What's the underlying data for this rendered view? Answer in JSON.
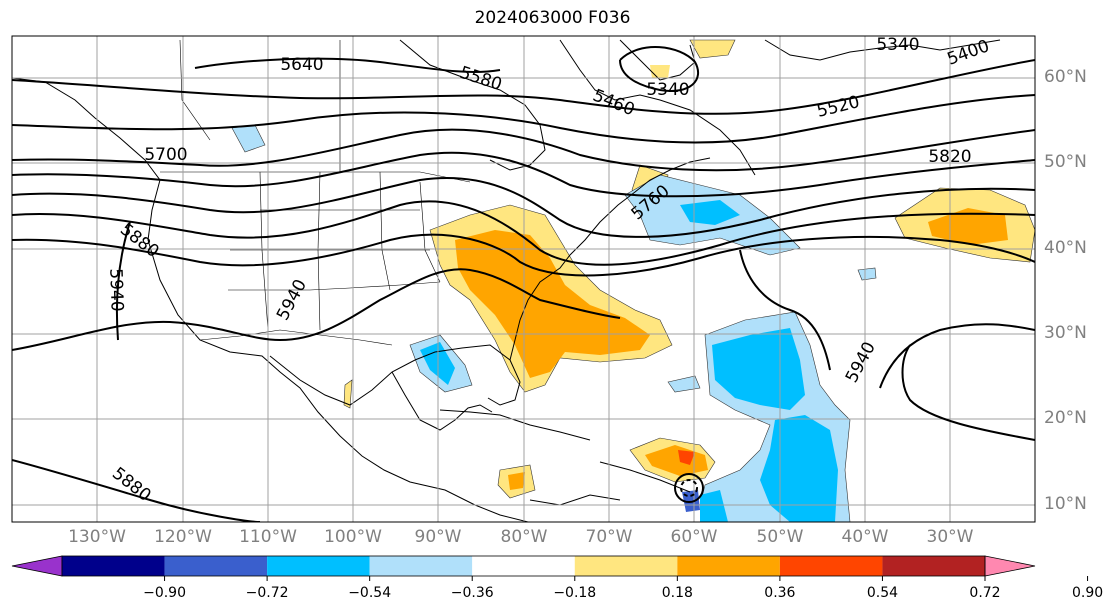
{
  "title": "2024063000 F036",
  "latitude_labels": [
    {
      "text": "60°N",
      "lat": 60
    },
    {
      "text": "50°N",
      "lat": 50
    },
    {
      "text": "40°N",
      "lat": 40
    },
    {
      "text": "30°N",
      "lat": 30
    },
    {
      "text": "20°N",
      "lat": 20
    },
    {
      "text": "10°N",
      "lat": 10
    }
  ],
  "longitude_labels": [
    {
      "text": "130°W",
      "lon": -130
    },
    {
      "text": "120°W",
      "lon": -120
    },
    {
      "text": "110°W",
      "lon": -110
    },
    {
      "text": "100°W",
      "lon": -100
    },
    {
      "text": "90°W",
      "lon": -90
    },
    {
      "text": "80°W",
      "lon": -80
    },
    {
      "text": "70°W",
      "lon": -70
    },
    {
      "text": "60°W",
      "lon": -60
    },
    {
      "text": "50°W",
      "lon": -50
    },
    {
      "text": "40°W",
      "lon": -40
    },
    {
      "text": "30°W",
      "lon": -30
    }
  ],
  "contour_labels": [
    "5640",
    "5580",
    "5460",
    "5340",
    "5400",
    "5340",
    "5520",
    "5700",
    "5820",
    "5880",
    "5940",
    "5940",
    "5940",
    "5880",
    "5760"
  ],
  "colorbar": {
    "ticks": [
      "−0.90",
      "−0.72",
      "−0.54",
      "−0.36",
      "−0.18",
      "0.18",
      "0.36",
      "0.54",
      "0.72",
      "0.90"
    ],
    "colors": [
      "#9932cc",
      "#00008b",
      "#3a5fcd",
      "#00bfff",
      "#b0e0fa",
      "#ffffff",
      "#ffe680",
      "#ffa500",
      "#ff4500",
      "#b22222",
      "#ff88b0"
    ]
  }
}
